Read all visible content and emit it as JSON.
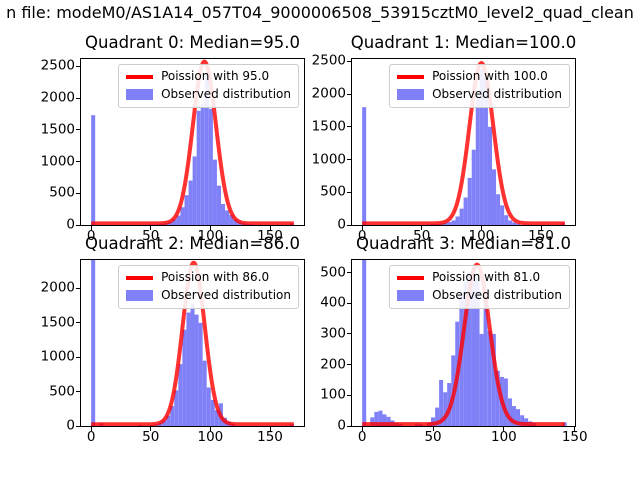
{
  "figure": {
    "suptitle": "n file: modeM0/AS1A14_057T04_9000006508_53915cztM0_level2_quad_clean",
    "background": "#ffffff",
    "bar_color": "#8181f7",
    "curve_color": "#ff0000",
    "curve_opacity": 0.8,
    "legend_border": "#cccccc"
  },
  "chart_data": [
    {
      "type": "bar",
      "subtype": "histogram-with-fit",
      "title": "Quadrant 0: Median=95.0",
      "legend": [
        "Poission with 95.0",
        "Observed distribution"
      ],
      "xlim": [
        -8.5,
        178.5
      ],
      "ylim": [
        0,
        2615
      ],
      "xticks": [
        0,
        50,
        100,
        150
      ],
      "yticks": [
        0,
        500,
        1000,
        1500,
        2000,
        2500
      ],
      "bin_width": 3.4,
      "bins": [
        [
          1.7,
          1730
        ],
        [
          49.3,
          8
        ],
        [
          52.7,
          6
        ],
        [
          56.1,
          12
        ],
        [
          59.5,
          20
        ],
        [
          63,
          30
        ],
        [
          66.4,
          50
        ],
        [
          69.8,
          90
        ],
        [
          73.2,
          150
        ],
        [
          76.6,
          280
        ],
        [
          80,
          470
        ],
        [
          83.4,
          700
        ],
        [
          86.8,
          1080
        ],
        [
          90.2,
          1800
        ],
        [
          93.6,
          1900
        ],
        [
          97,
          2400
        ],
        [
          100.4,
          1830
        ],
        [
          103.8,
          1030
        ],
        [
          107.2,
          620
        ],
        [
          110.6,
          330
        ],
        [
          114,
          230
        ],
        [
          117.4,
          160
        ],
        [
          120.8,
          90
        ],
        [
          124.2,
          55
        ],
        [
          127.6,
          35
        ],
        [
          131,
          18
        ],
        [
          134.4,
          10
        ],
        [
          168.3,
          28
        ]
      ],
      "curve": {
        "model": "poisson",
        "lambda": 95.0,
        "sigma": 9.7,
        "peak": 2550,
        "base": 25,
        "range": [
          0,
          170
        ]
      }
    },
    {
      "type": "bar",
      "subtype": "histogram-with-fit",
      "title": "Quadrant 1: Median=100.0",
      "legend": [
        "Poission with 100.0",
        "Observed distribution"
      ],
      "xlim": [
        -8.5,
        178.5
      ],
      "ylim": [
        0,
        2536
      ],
      "xticks": [
        0,
        50,
        100,
        150
      ],
      "yticks": [
        0,
        500,
        1000,
        1500,
        2000,
        2500
      ],
      "bin_width": 3.4,
      "bins": [
        [
          1.7,
          1800
        ],
        [
          56.1,
          10
        ],
        [
          59.5,
          12
        ],
        [
          63,
          16
        ],
        [
          66.4,
          22
        ],
        [
          69.8,
          30
        ],
        [
          73.2,
          45
        ],
        [
          76.6,
          70
        ],
        [
          80,
          130
        ],
        [
          83.4,
          250
        ],
        [
          86.8,
          420
        ],
        [
          90.2,
          720
        ],
        [
          93.6,
          1150
        ],
        [
          97,
          1950
        ],
        [
          100.4,
          2380
        ],
        [
          103.8,
          2250
        ],
        [
          107.2,
          1500
        ],
        [
          110.6,
          850
        ],
        [
          114,
          470
        ],
        [
          117.4,
          300
        ],
        [
          120.8,
          150
        ],
        [
          124.2,
          70
        ],
        [
          127.6,
          40
        ],
        [
          131,
          20
        ],
        [
          168.3,
          32
        ]
      ],
      "curve": {
        "model": "poisson",
        "lambda": 100.0,
        "sigma": 10.0,
        "peak": 2450,
        "base": 25,
        "range": [
          0,
          170
        ]
      }
    },
    {
      "type": "bar",
      "subtype": "histogram-with-fit",
      "title": "Quadrant 2: Median=86.0",
      "legend": [
        "Poission with 86.0",
        "Observed distribution"
      ],
      "xlim": [
        -8.5,
        178.5
      ],
      "ylim": [
        0,
        2414
      ],
      "xticks": [
        0,
        50,
        100,
        150
      ],
      "yticks": [
        0,
        500,
        1000,
        1500,
        2000
      ],
      "bin_width": 3.4,
      "bins": [
        [
          1.7,
          3000
        ],
        [
          8.5,
          40
        ],
        [
          40.8,
          18
        ],
        [
          51,
          15
        ],
        [
          54.4,
          25
        ],
        [
          57.8,
          45
        ],
        [
          61.2,
          80
        ],
        [
          64.6,
          150
        ],
        [
          68,
          290
        ],
        [
          71.4,
          520
        ],
        [
          74.8,
          900
        ],
        [
          78.2,
          1400
        ],
        [
          81.6,
          1650
        ],
        [
          85,
          1780
        ],
        [
          88.4,
          1620
        ],
        [
          91.8,
          1500
        ],
        [
          95.2,
          950
        ],
        [
          98.6,
          560
        ],
        [
          102,
          380
        ],
        [
          105.4,
          230
        ],
        [
          108.8,
          330
        ],
        [
          112.2,
          120
        ],
        [
          115.6,
          60
        ],
        [
          119,
          30
        ],
        [
          168.3,
          28
        ]
      ],
      "curve": {
        "model": "poisson",
        "lambda": 86.0,
        "sigma": 9.3,
        "peak": 2350,
        "base": 25,
        "range": [
          0,
          170
        ]
      }
    },
    {
      "type": "bar",
      "subtype": "histogram-with-fit",
      "title": "Quadrant 3: Median=81.0",
      "legend": [
        "Poission with 81.0",
        "Observed distribution"
      ],
      "xlim": [
        -7.2,
        150.2
      ],
      "ylim": [
        0,
        541
      ],
      "xticks": [
        0,
        50,
        100,
        150
      ],
      "yticks": [
        0,
        100,
        200,
        300,
        400,
        500
      ],
      "bin_width": 2.86,
      "bins": [
        [
          1.4,
          1800
        ],
        [
          7.1,
          28
        ],
        [
          10,
          46
        ],
        [
          12.9,
          50
        ],
        [
          15.7,
          38
        ],
        [
          18.6,
          30
        ],
        [
          21.4,
          18
        ],
        [
          24.3,
          10
        ],
        [
          27.1,
          7
        ],
        [
          38.6,
          8
        ],
        [
          41.4,
          6
        ],
        [
          47.1,
          10
        ],
        [
          50,
          28
        ],
        [
          52.9,
          60
        ],
        [
          55.7,
          150
        ],
        [
          58.6,
          110
        ],
        [
          61.4,
          140
        ],
        [
          64.3,
          230
        ],
        [
          67.1,
          340
        ],
        [
          70,
          430
        ],
        [
          72.9,
          470
        ],
        [
          75.7,
          500
        ],
        [
          78.6,
          515
        ],
        [
          81.4,
          480
        ],
        [
          84.3,
          300
        ],
        [
          87.1,
          420
        ],
        [
          90,
          310
        ],
        [
          92.9,
          300
        ],
        [
          95.7,
          180
        ],
        [
          98.6,
          160
        ],
        [
          101.4,
          155
        ],
        [
          104.3,
          90
        ],
        [
          107.1,
          65
        ],
        [
          110,
          55
        ],
        [
          112.9,
          35
        ],
        [
          115.7,
          25
        ],
        [
          118.6,
          15
        ],
        [
          121.4,
          10
        ],
        [
          142.9,
          12
        ]
      ],
      "curve": {
        "model": "poisson",
        "lambda": 81.0,
        "sigma": 9.0,
        "peak": 520,
        "base": 6,
        "range": [
          0,
          143
        ]
      }
    }
  ]
}
